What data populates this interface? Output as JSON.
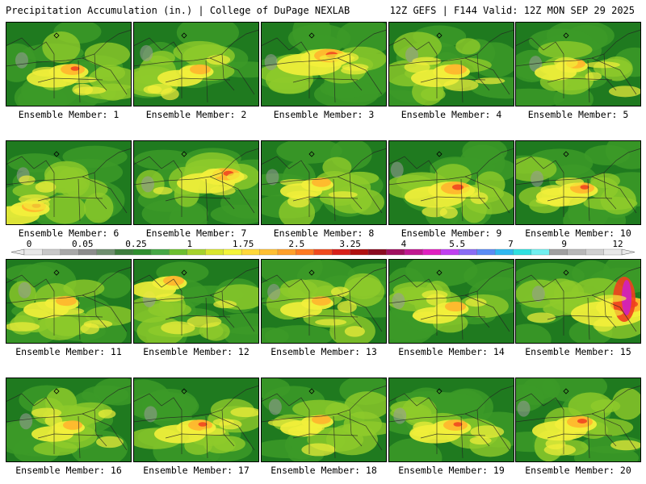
{
  "header": {
    "title": "Precipitation Accumulation (in.) | College of DuPage NEXLAB",
    "run_info": "12Z GEFS | F144 Valid: 12Z MON SEP 29 2025"
  },
  "member_label_prefix": "Ensemble Member: ",
  "members": [
    {
      "id": "1",
      "intensity": 0.55,
      "hotspot": "mid-band"
    },
    {
      "id": "2",
      "intensity": 0.45,
      "hotspot": "mid-band"
    },
    {
      "id": "3",
      "intensity": 0.75,
      "hotspot": "north-core"
    },
    {
      "id": "4",
      "intensity": 0.5,
      "hotspot": "mid-band"
    },
    {
      "id": "5",
      "intensity": 0.4,
      "hotspot": "scattered"
    },
    {
      "id": "6",
      "intensity": 0.55,
      "hotspot": "southwest"
    },
    {
      "id": "7",
      "intensity": 0.65,
      "hotspot": "northeast"
    },
    {
      "id": "8",
      "intensity": 0.4,
      "hotspot": "scattered"
    },
    {
      "id": "9",
      "intensity": 0.7,
      "hotspot": "mid-band"
    },
    {
      "id": "10",
      "intensity": 0.55,
      "hotspot": "mid-band"
    },
    {
      "id": "11",
      "intensity": 0.45,
      "hotspot": "scattered"
    },
    {
      "id": "12",
      "intensity": 0.45,
      "hotspot": "northwest"
    },
    {
      "id": "13",
      "intensity": 0.4,
      "hotspot": "scattered"
    },
    {
      "id": "14",
      "intensity": 0.45,
      "hotspot": "mid-band"
    },
    {
      "id": "15",
      "intensity": 0.9,
      "hotspot": "coastal-east"
    },
    {
      "id": "16",
      "intensity": 0.4,
      "hotspot": "mid-band"
    },
    {
      "id": "17",
      "intensity": 0.55,
      "hotspot": "mid-band"
    },
    {
      "id": "18",
      "intensity": 0.4,
      "hotspot": "scattered"
    },
    {
      "id": "19",
      "intensity": 0.55,
      "hotspot": "mid-band"
    },
    {
      "id": "20",
      "intensity": 0.6,
      "hotspot": "center"
    }
  ],
  "colorbar": {
    "tick_labels": [
      "0",
      "0.05",
      "0.25",
      "1",
      "1.75",
      "2.5",
      "3.25",
      "4",
      "5.5",
      "7",
      "9",
      "12"
    ],
    "colors": [
      "#e8e8e8",
      "#c8c8c8",
      "#a8a8a8",
      "#8c8c8c",
      "#6f8f6f",
      "#3d7d3d",
      "#2f8f2f",
      "#45a845",
      "#6cbf2f",
      "#a6d22c",
      "#d9e62e",
      "#f4f43a",
      "#ffd83a",
      "#ffbf32",
      "#ffa02a",
      "#ff7a22",
      "#f04a1e",
      "#d8201a",
      "#b01010",
      "#8a0a20",
      "#a01060",
      "#c01890",
      "#e020c0",
      "#c040f0",
      "#8a6cf5",
      "#5a8cf5",
      "#30b8f0",
      "#30e0e0",
      "#70f0f0",
      "#a0a0a0",
      "#b8b8b8",
      "#d0d0d0",
      "#e8e8e8"
    ]
  },
  "palette": {
    "green_dark": "#1f7a1f",
    "green": "#3c9a28",
    "lime": "#8fcb2a",
    "yellow": "#f2ef3a",
    "orange": "#ffb52e",
    "red": "#f0401e",
    "magenta": "#d020c0",
    "gray": "#9a9a9a"
  }
}
